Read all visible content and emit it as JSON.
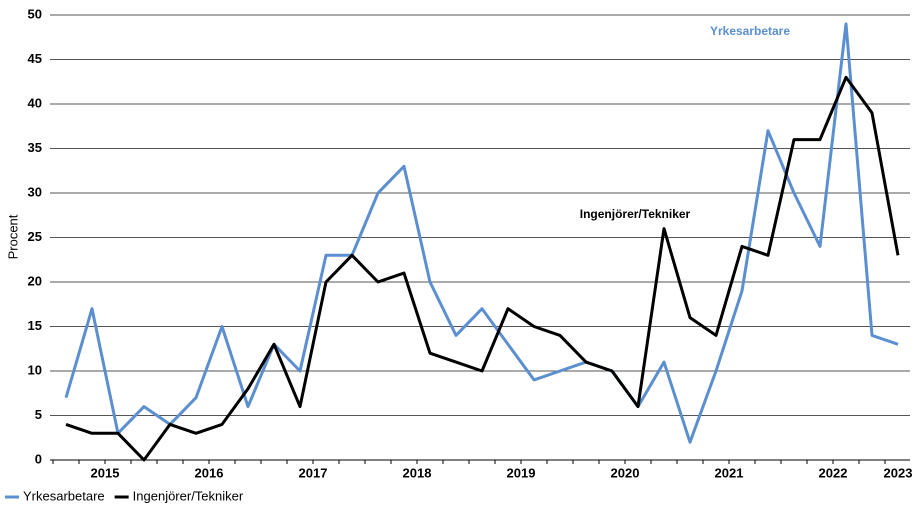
{
  "chart_data": {
    "type": "line",
    "y_label": "Procent",
    "categories": [
      null,
      "2015",
      null,
      null,
      null,
      "2016",
      null,
      null,
      null,
      "2017",
      null,
      null,
      null,
      "2018",
      null,
      null,
      null,
      "2019",
      null,
      null,
      null,
      "2020",
      null,
      null,
      null,
      "2021",
      null,
      null,
      null,
      "2022",
      null,
      null,
      "2023"
    ],
    "series": [
      {
        "name": "Yrkesarbetare",
        "color": "#5b8fd0",
        "values": [
          7,
          17,
          3,
          6,
          4,
          7,
          15,
          6,
          13,
          10,
          23,
          23,
          30,
          33,
          20,
          14,
          17,
          13,
          9,
          10,
          11,
          10,
          6,
          11,
          2,
          10,
          19,
          37,
          30,
          24,
          49,
          14,
          13
        ]
      },
      {
        "name": "Ingenjörer/Tekniker",
        "color": "#000000",
        "values": [
          4,
          3,
          3,
          0,
          4,
          3,
          4,
          8,
          13,
          6,
          20,
          23,
          20,
          21,
          12,
          11,
          10,
          17,
          15,
          14,
          11,
          10,
          6,
          26,
          16,
          14,
          24,
          23,
          36,
          36,
          43,
          39,
          23
        ]
      }
    ],
    "annotations": [
      "Yrkesarbetare",
      "Ingenjörer/Tekniker"
    ],
    "ylim": [
      0,
      50
    ],
    "yticks": [
      0,
      5,
      10,
      15,
      20,
      25,
      30,
      35,
      40,
      45,
      50
    ],
    "grid": true
  }
}
